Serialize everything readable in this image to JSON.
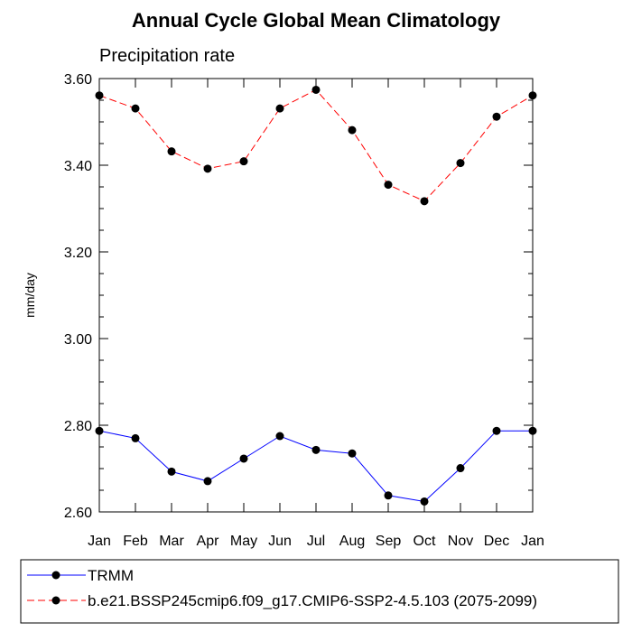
{
  "chart_data": {
    "type": "line",
    "title": "Annual Cycle Global Mean Climatology",
    "subtitle": "Precipitation rate",
    "xlabel": "",
    "ylabel": "mm/day",
    "categories": [
      "Jan",
      "Feb",
      "Mar",
      "Apr",
      "May",
      "Jun",
      "Jul",
      "Aug",
      "Sep",
      "Oct",
      "Nov",
      "Dec",
      "Jan"
    ],
    "ylim": [
      2.6,
      3.6
    ],
    "yticks": [
      "2.60",
      "2.80",
      "3.00",
      "3.20",
      "3.40",
      "3.60"
    ],
    "grid": false,
    "legend_position": "bottom",
    "series": [
      {
        "name": "TRMM",
        "color": "#0000ff",
        "dash": "solid",
        "values": [
          2.787,
          2.77,
          2.693,
          2.671,
          2.723,
          2.775,
          2.743,
          2.735,
          2.638,
          2.624,
          2.701,
          2.787,
          2.787
        ]
      },
      {
        "name": "b.e21.BSSP245cmip6.f09_g17.CMIP6-SSP2-4.5.103 (2075-2099)",
        "color": "#ff0000",
        "dash": "dashed",
        "values": [
          3.561,
          3.531,
          3.432,
          3.392,
          3.409,
          3.531,
          3.574,
          3.481,
          3.355,
          3.317,
          3.405,
          3.512,
          3.561
        ]
      }
    ]
  }
}
